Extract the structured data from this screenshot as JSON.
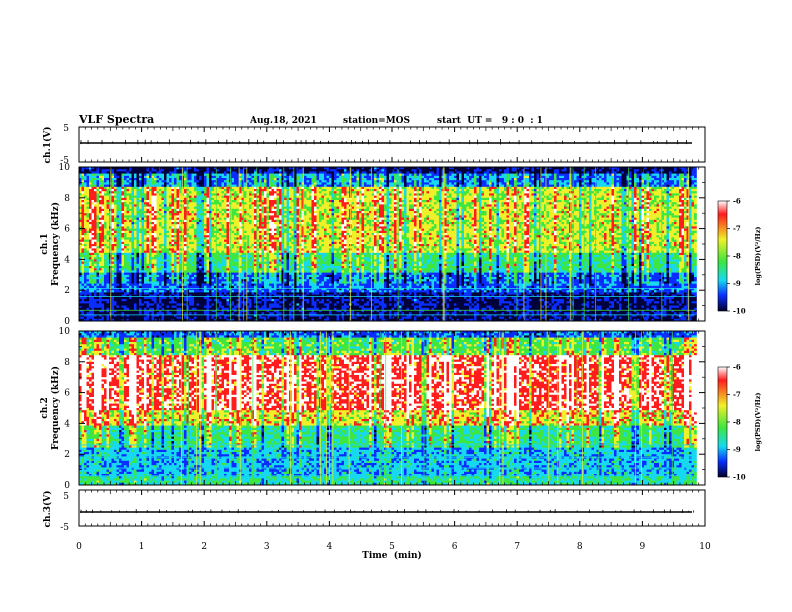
{
  "header": {
    "title": "VLF Spectra",
    "date": "Aug.18, 2021",
    "station": "station=MOS",
    "start": "start  UT =   9 : 0  : 1"
  },
  "chart_data": [
    {
      "type": "line",
      "panel": "ch1-waveform",
      "ylabel": "ch.1(V)",
      "ylim": [
        -5,
        5
      ],
      "yticks": [
        "5",
        "-5"
      ],
      "xlim": [
        0,
        10
      ],
      "baseline": 0
    },
    {
      "type": "heatmap",
      "panel": "ch1-spectrogram",
      "ylabel": "ch.1\nFrequency (kHz)",
      "ylabel_line1": "ch.1",
      "ylabel_line2": "Frequency (kHz)",
      "ylim": [
        0,
        10
      ],
      "yticks": [
        "0",
        "2",
        "4",
        "6",
        "8",
        "10"
      ],
      "xlim": [
        0,
        10
      ],
      "data_end_min": 9.85,
      "colorbar": {
        "label": "log(PSD)(V²/Hz)",
        "range": [
          -10,
          -6
        ],
        "ticks": [
          "-6",
          "-7",
          "-8",
          "-9",
          "-10"
        ]
      }
    },
    {
      "type": "heatmap",
      "panel": "ch2-spectrogram",
      "ylabel": "ch.2\nFrequency (kHz)",
      "ylabel_line1": "ch.2",
      "ylabel_line2": "Frequency (kHz)",
      "ylim": [
        0,
        10
      ],
      "yticks": [
        "0",
        "2",
        "4",
        "6",
        "8",
        "10"
      ],
      "xlim": [
        0,
        10
      ],
      "data_end_min": 9.85,
      "colorbar": {
        "label": "log(PSD)(V²/Hz)",
        "range": [
          -10,
          -6
        ],
        "ticks": [
          "-6",
          "-7",
          "-8",
          "-9",
          "-10"
        ]
      }
    },
    {
      "type": "line",
      "panel": "ch3-waveform",
      "ylabel": "ch.3(V)",
      "ylim": [
        -5,
        5
      ],
      "yticks": [
        "5",
        "-5"
      ],
      "xlim": [
        0,
        10
      ],
      "baseline": 0
    }
  ],
  "xaxis": {
    "label": "Time  (min)",
    "ticks": [
      "0",
      "1",
      "2",
      "3",
      "4",
      "5",
      "6",
      "7",
      "8",
      "9",
      "10"
    ]
  },
  "colors": {
    "dark_navy": "#00003a",
    "blue": "#0a2dff",
    "cyan": "#16d9f0",
    "green": "#3ee63e",
    "yellow": "#f0f02a",
    "red": "#ff1c1c",
    "white": "#ffffff"
  }
}
